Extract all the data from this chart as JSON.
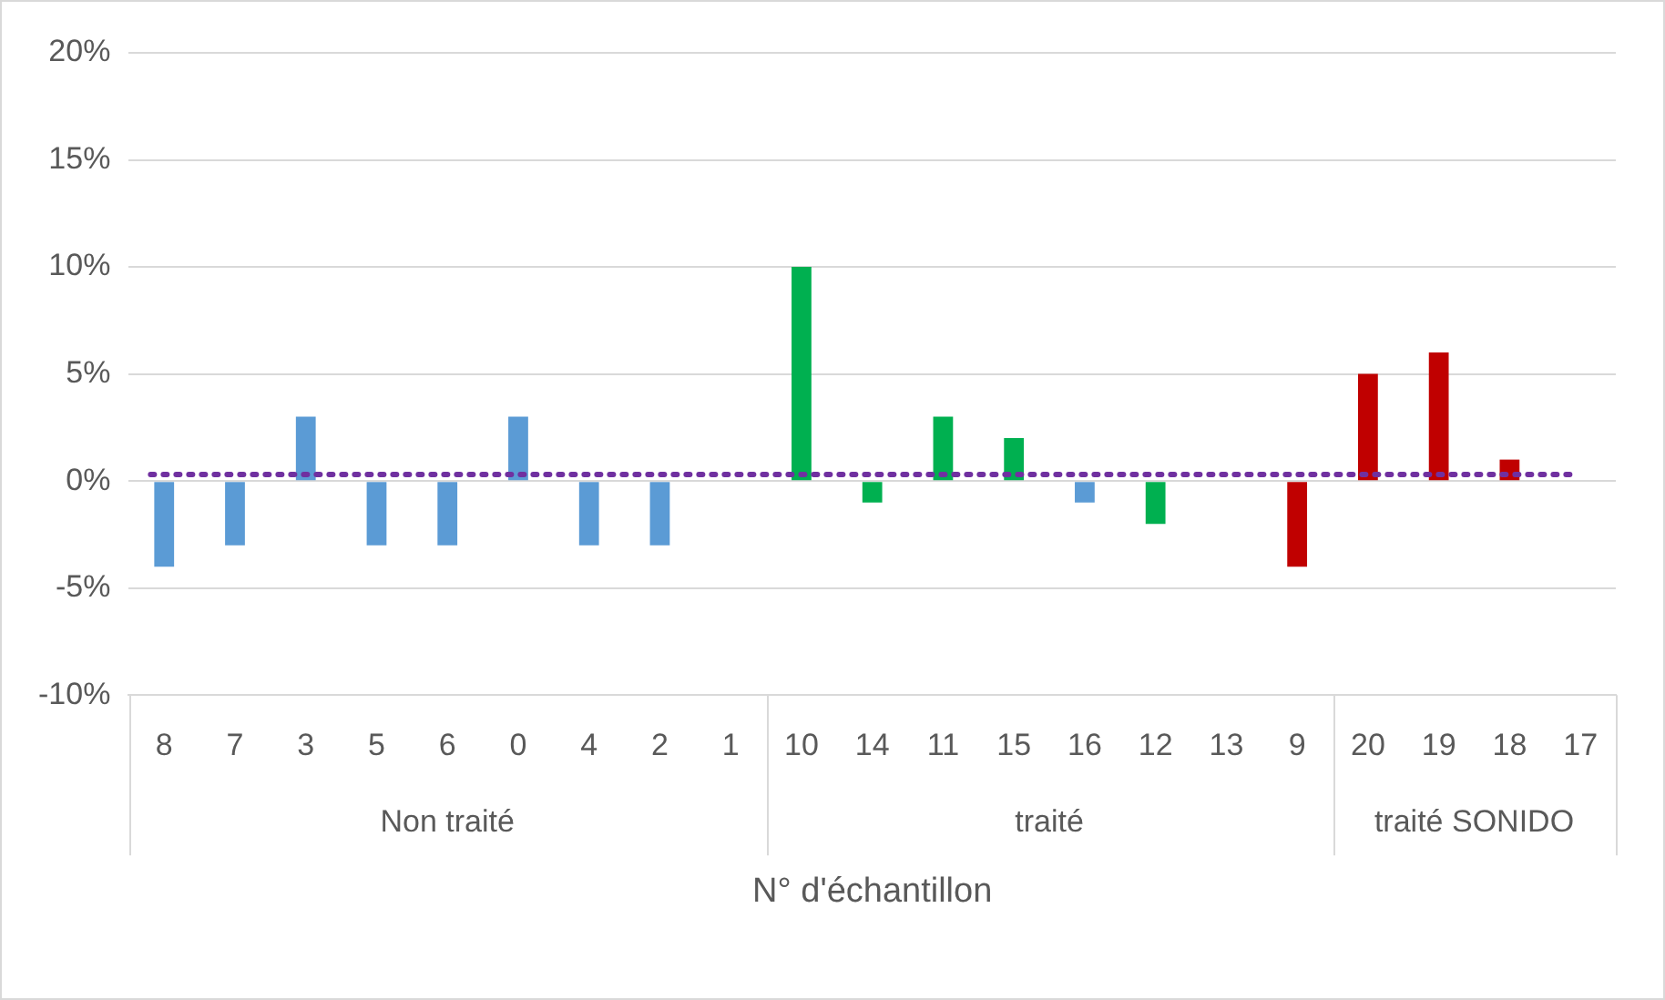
{
  "chart_data": {
    "type": "bar",
    "xlabel": "N° d'échantillon",
    "categories": [
      "8",
      "7",
      "3",
      "5",
      "6",
      "0",
      "4",
      "2",
      "1",
      "10",
      "14",
      "11",
      "15",
      "16",
      "12",
      "13",
      "9",
      "20",
      "19",
      "18",
      "17"
    ],
    "values": [
      -4,
      -3,
      3,
      -3,
      -3,
      3,
      -3,
      -3,
      0,
      10,
      -1,
      3,
      2,
      -1,
      -2,
      0,
      -4,
      5,
      6,
      1,
      0
    ],
    "colors": [
      "#5b9bd5",
      "#5b9bd5",
      "#5b9bd5",
      "#5b9bd5",
      "#5b9bd5",
      "#5b9bd5",
      "#5b9bd5",
      "#5b9bd5",
      "#5b9bd5",
      "#00b050",
      "#00b050",
      "#00b050",
      "#00b050",
      "#5b9bd5",
      "#00b050",
      "#00b050",
      "#c00000",
      "#c00000",
      "#c00000",
      "#c00000",
      "#c00000"
    ],
    "ylim": [
      -10,
      20
    ],
    "yticks": [
      {
        "value": -10,
        "label": "-10%"
      },
      {
        "value": -5,
        "label": "-5%"
      },
      {
        "value": 0,
        "label": "0%"
      },
      {
        "value": 5,
        "label": "5%"
      },
      {
        "value": 10,
        "label": "10%"
      },
      {
        "value": 15,
        "label": "15%"
      },
      {
        "value": 20,
        "label": "20%"
      }
    ],
    "grid": "y",
    "legend": false,
    "ref_lines": [
      {
        "axis": "y",
        "value": 0.3,
        "color": "#7030a0",
        "line_style": "dotted"
      }
    ],
    "annotations": [
      "Non traité",
      "traité",
      "traité SONIDO"
    ]
  }
}
